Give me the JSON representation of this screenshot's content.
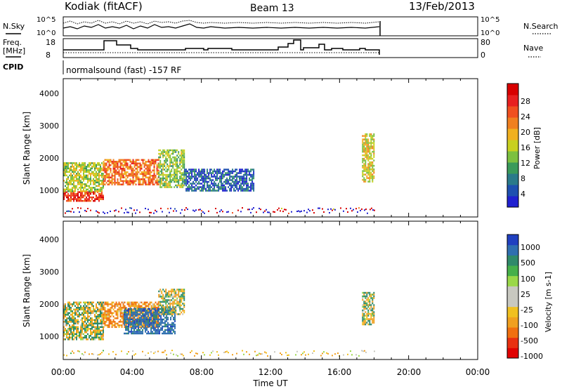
{
  "header": {
    "station": "Kodiak (fitACF)",
    "beam": "Beam 13",
    "date": "13/Feb/2013"
  },
  "top_panels": {
    "nsky_label": "N.Sky",
    "nsearch_label": "N.Search",
    "freq_label": "Freq.",
    "freq_unit": "[MHz]",
    "nave_label": "Nave",
    "cpid_label": "CPID",
    "cpid_text": "normalsound (fast) -157 RF",
    "noise_ticks": [
      "10^5",
      "10^0"
    ],
    "freq_ticks": [
      "18",
      "8"
    ],
    "nave_ticks": [
      "80",
      "0"
    ]
  },
  "colorbars": {
    "power": {
      "label": "Power [dB]",
      "ticks": [
        "28",
        "24",
        "20",
        "16",
        "12",
        "8",
        "4"
      ],
      "colors": [
        "#2020d0",
        "#1e50b0",
        "#2a7a8a",
        "#3a9a5a",
        "#7cc040",
        "#c8d020",
        "#f0b020",
        "#f08020",
        "#f05020",
        "#e82020",
        "#d80000"
      ]
    },
    "velocity": {
      "label": "Velocity [m s-1]",
      "ticks": [
        "1000",
        "500",
        "100",
        "25",
        "-25",
        "-100",
        "-500",
        "-1000"
      ],
      "colors": [
        "#2040c0",
        "#2f6fb0",
        "#2f8a6a",
        "#46b04a",
        "#9ad848",
        "#c8c8c0",
        "#c8c8c0",
        "#f0c020",
        "#f0a020",
        "#f07010",
        "#e83010",
        "#e00000"
      ]
    }
  },
  "chart_data": [
    {
      "type": "heatmap",
      "title": "Power",
      "ylabel": "Slant Range [km]",
      "yticks": [
        "4000",
        "3000",
        "2000",
        "1000"
      ],
      "ylim": [
        200,
        4500
      ],
      "xlim": [
        0,
        24
      ],
      "approx_regions": [
        {
          "t_start": 0.0,
          "t_end": 2.3,
          "range_low": 700,
          "range_high": 1000,
          "level_db": 26
        },
        {
          "t_start": 0.0,
          "t_end": 2.3,
          "range_low": 1000,
          "range_high": 1900,
          "level_db": 14
        },
        {
          "t_start": 2.3,
          "t_end": 5.5,
          "range_low": 1200,
          "range_high": 2000,
          "level_db": 22
        },
        {
          "t_start": 5.5,
          "t_end": 7.0,
          "range_low": 1100,
          "range_high": 2300,
          "level_db": 12
        },
        {
          "t_start": 7.0,
          "t_end": 11.0,
          "range_low": 1000,
          "range_high": 1700,
          "level_db": 4
        },
        {
          "t_start": 17.3,
          "t_end": 18.0,
          "range_low": 1300,
          "range_high": 2800,
          "level_db": 16
        }
      ]
    },
    {
      "type": "heatmap",
      "title": "Velocity",
      "ylabel": "Slant Range [km]",
      "yticks": [
        "4000",
        "3000",
        "2000",
        "1000"
      ],
      "ylim": [
        200,
        4500
      ],
      "xlim": [
        0,
        24
      ],
      "approx_regions": [
        {
          "t_start": 0.0,
          "t_end": 2.3,
          "range_low": 800,
          "range_high": 2000,
          "velocity": 0
        },
        {
          "t_start": 2.3,
          "t_end": 5.5,
          "range_low": 1200,
          "range_high": 2000,
          "velocity": -300
        },
        {
          "t_start": 3.5,
          "t_end": 6.5,
          "range_low": 1000,
          "range_high": 1800,
          "velocity": 500
        },
        {
          "t_start": 5.5,
          "t_end": 7.0,
          "range_low": 1600,
          "range_high": 2400,
          "velocity": 0
        },
        {
          "t_start": 17.3,
          "t_end": 18.0,
          "range_low": 1300,
          "range_high": 2300,
          "velocity": 0
        }
      ]
    }
  ],
  "xaxis": {
    "label": "Time UT",
    "ticks": [
      "00:00",
      "04:00",
      "08:00",
      "12:00",
      "16:00",
      "20:00",
      "00:00"
    ]
  }
}
